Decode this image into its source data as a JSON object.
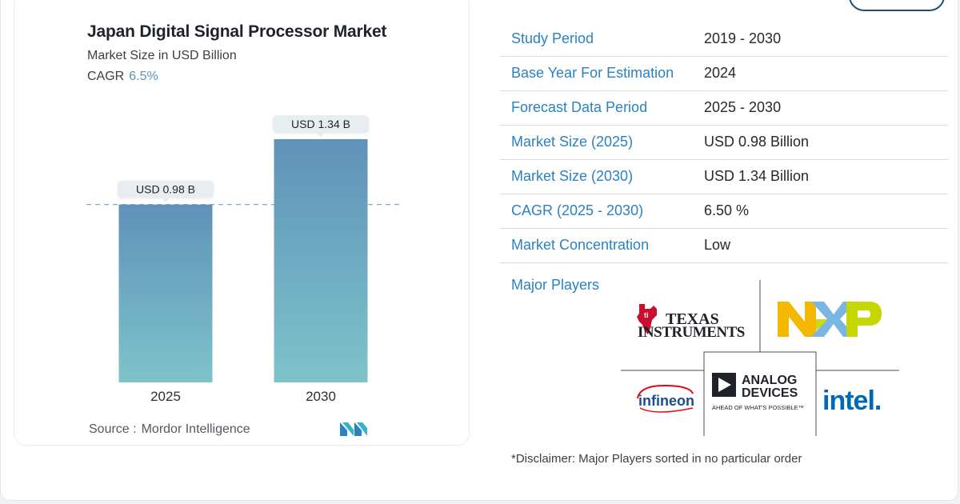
{
  "chart": {
    "title": "Japan Digital Signal Processor Market",
    "subtitle": "Market Size in USD Billion",
    "cagr_label": "CAGR",
    "cagr_value": "6.5%",
    "source_label": "Source :",
    "source_name": "Mordor Intelligence"
  },
  "chart_data": {
    "type": "bar",
    "categories": [
      "2025",
      "2030"
    ],
    "values": [
      0.98,
      1.34
    ],
    "data_labels": [
      "USD 0.98 B",
      "USD 1.34 B"
    ],
    "title": "Japan Digital Signal Processor Market",
    "subtitle": "Market Size in USD Billion",
    "ylim": [
      0,
      1.34
    ],
    "grid": false,
    "reference_line": 0.98,
    "colors": {
      "bar_top": "#5f92b9",
      "bar_bottom": "#7ec3ca",
      "label_bg": "#e8eef0",
      "ref_line": "#6f9fbf"
    }
  },
  "info": {
    "rows": [
      {
        "key": "Study Period",
        "value": "2019 - 2030"
      },
      {
        "key": "Base Year For Estimation",
        "value": "2024"
      },
      {
        "key": "Forecast Data Period",
        "value": "2025 - 2030"
      },
      {
        "key": "Market Size (2025)",
        "value": "USD 0.98 Billion"
      },
      {
        "key": "Market Size (2030)",
        "value": "USD 1.34 Billion"
      },
      {
        "key": "CAGR (2025 - 2030)",
        "value": "6.50 %"
      },
      {
        "key": "Market Concentration",
        "value": "Low"
      }
    ]
  },
  "players": {
    "label": "Major Players",
    "logos": [
      {
        "name": "Texas Instruments",
        "line1": "TEXAS",
        "line2": "INSTRUMENTS",
        "color": "#1f2329",
        "mark_color": "#c8102e"
      },
      {
        "name": "NXP",
        "color": "#f5b800"
      },
      {
        "name": "Infineon",
        "text": "infineon",
        "color": "#1c4c8c"
      },
      {
        "name": "Analog Devices",
        "line1": "ANALOG",
        "line2": "DEVICES",
        "tagline": "AHEAD OF WHAT'S POSSIBLE™",
        "color": "#1f2329"
      },
      {
        "name": "Intel",
        "text": "intel.",
        "color": "#0068b5"
      }
    ]
  },
  "disclaimer": "*Disclaimer: Major Players sorted in no particular order"
}
